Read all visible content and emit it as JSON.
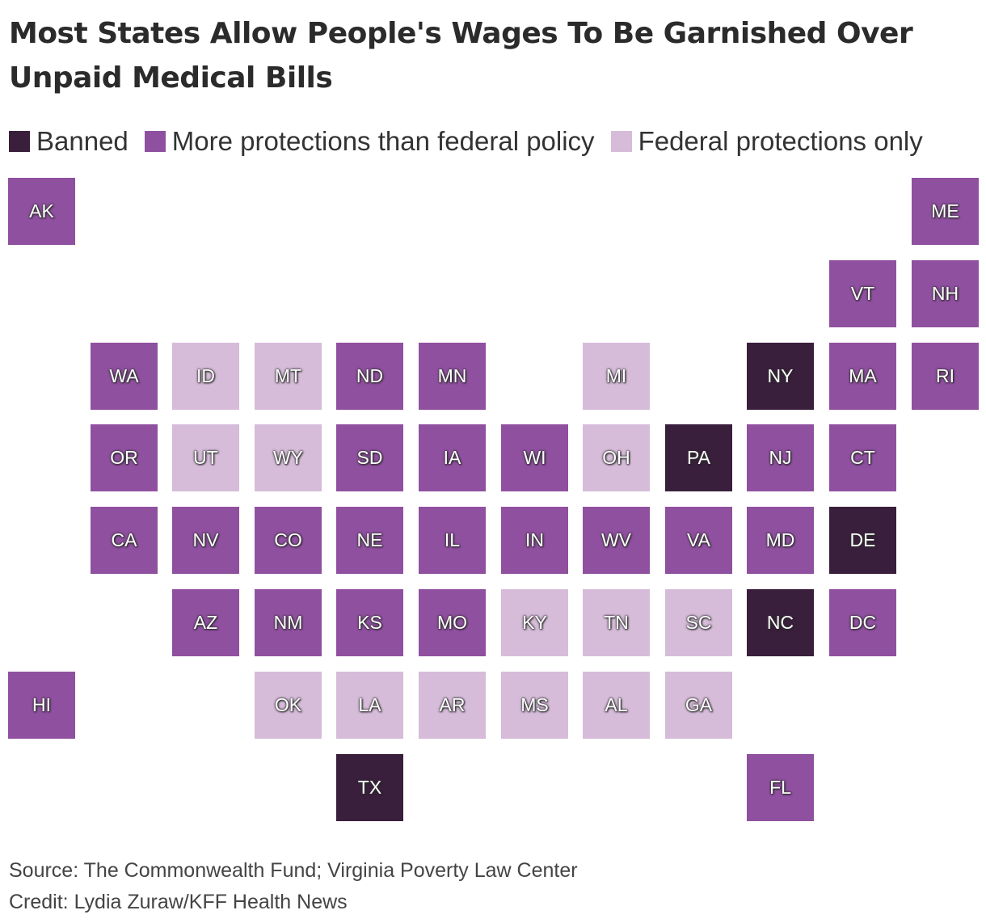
{
  "title": "Most States Allow People's Wages To Be Garnished Over Unpaid Medical Bills",
  "legend": [
    {
      "key": "banned",
      "label": "Banned",
      "color": "#3a1f3d"
    },
    {
      "key": "more",
      "label": "More protections than federal policy",
      "color": "#9050a0"
    },
    {
      "key": "federal",
      "label": "Federal protections only",
      "color": "#d6bcd9"
    }
  ],
  "states": [
    {
      "abbr": "AK",
      "row": 0,
      "col": 0,
      "category": "more"
    },
    {
      "abbr": "ME",
      "row": 0,
      "col": 11,
      "category": "more"
    },
    {
      "abbr": "VT",
      "row": 1,
      "col": 10,
      "category": "more"
    },
    {
      "abbr": "NH",
      "row": 1,
      "col": 11,
      "category": "more"
    },
    {
      "abbr": "WA",
      "row": 2,
      "col": 1,
      "category": "more"
    },
    {
      "abbr": "ID",
      "row": 2,
      "col": 2,
      "category": "federal"
    },
    {
      "abbr": "MT",
      "row": 2,
      "col": 3,
      "category": "federal"
    },
    {
      "abbr": "ND",
      "row": 2,
      "col": 4,
      "category": "more"
    },
    {
      "abbr": "MN",
      "row": 2,
      "col": 5,
      "category": "more"
    },
    {
      "abbr": "MI",
      "row": 2,
      "col": 7,
      "category": "federal"
    },
    {
      "abbr": "NY",
      "row": 2,
      "col": 9,
      "category": "banned"
    },
    {
      "abbr": "MA",
      "row": 2,
      "col": 10,
      "category": "more"
    },
    {
      "abbr": "RI",
      "row": 2,
      "col": 11,
      "category": "more"
    },
    {
      "abbr": "OR",
      "row": 3,
      "col": 1,
      "category": "more"
    },
    {
      "abbr": "UT",
      "row": 3,
      "col": 2,
      "category": "federal"
    },
    {
      "abbr": "WY",
      "row": 3,
      "col": 3,
      "category": "federal"
    },
    {
      "abbr": "SD",
      "row": 3,
      "col": 4,
      "category": "more"
    },
    {
      "abbr": "IA",
      "row": 3,
      "col": 5,
      "category": "more"
    },
    {
      "abbr": "WI",
      "row": 3,
      "col": 6,
      "category": "more"
    },
    {
      "abbr": "OH",
      "row": 3,
      "col": 7,
      "category": "federal"
    },
    {
      "abbr": "PA",
      "row": 3,
      "col": 8,
      "category": "banned"
    },
    {
      "abbr": "NJ",
      "row": 3,
      "col": 9,
      "category": "more"
    },
    {
      "abbr": "CT",
      "row": 3,
      "col": 10,
      "category": "more"
    },
    {
      "abbr": "CA",
      "row": 4,
      "col": 1,
      "category": "more"
    },
    {
      "abbr": "NV",
      "row": 4,
      "col": 2,
      "category": "more"
    },
    {
      "abbr": "CO",
      "row": 4,
      "col": 3,
      "category": "more"
    },
    {
      "abbr": "NE",
      "row": 4,
      "col": 4,
      "category": "more"
    },
    {
      "abbr": "IL",
      "row": 4,
      "col": 5,
      "category": "more"
    },
    {
      "abbr": "IN",
      "row": 4,
      "col": 6,
      "category": "more"
    },
    {
      "abbr": "WV",
      "row": 4,
      "col": 7,
      "category": "more"
    },
    {
      "abbr": "VA",
      "row": 4,
      "col": 8,
      "category": "more"
    },
    {
      "abbr": "MD",
      "row": 4,
      "col": 9,
      "category": "more"
    },
    {
      "abbr": "DE",
      "row": 4,
      "col": 10,
      "category": "banned"
    },
    {
      "abbr": "AZ",
      "row": 5,
      "col": 2,
      "category": "more"
    },
    {
      "abbr": "NM",
      "row": 5,
      "col": 3,
      "category": "more"
    },
    {
      "abbr": "KS",
      "row": 5,
      "col": 4,
      "category": "more"
    },
    {
      "abbr": "MO",
      "row": 5,
      "col": 5,
      "category": "more"
    },
    {
      "abbr": "KY",
      "row": 5,
      "col": 6,
      "category": "federal"
    },
    {
      "abbr": "TN",
      "row": 5,
      "col": 7,
      "category": "federal"
    },
    {
      "abbr": "SC",
      "row": 5,
      "col": 8,
      "category": "federal"
    },
    {
      "abbr": "NC",
      "row": 5,
      "col": 9,
      "category": "banned"
    },
    {
      "abbr": "DC",
      "row": 5,
      "col": 10,
      "category": "more"
    },
    {
      "abbr": "HI",
      "row": 6,
      "col": 0,
      "category": "more"
    },
    {
      "abbr": "OK",
      "row": 6,
      "col": 3,
      "category": "federal"
    },
    {
      "abbr": "LA",
      "row": 6,
      "col": 4,
      "category": "federal"
    },
    {
      "abbr": "AR",
      "row": 6,
      "col": 5,
      "category": "federal"
    },
    {
      "abbr": "MS",
      "row": 6,
      "col": 6,
      "category": "federal"
    },
    {
      "abbr": "AL",
      "row": 6,
      "col": 7,
      "category": "federal"
    },
    {
      "abbr": "GA",
      "row": 6,
      "col": 8,
      "category": "federal"
    },
    {
      "abbr": "TX",
      "row": 7,
      "col": 4,
      "category": "banned"
    },
    {
      "abbr": "FL",
      "row": 7,
      "col": 9,
      "category": "more"
    }
  ],
  "source": "Source: The Commonwealth Fund; Virginia Poverty Law Center",
  "credit": "Credit: Lydia Zuraw/KFF Health News"
}
